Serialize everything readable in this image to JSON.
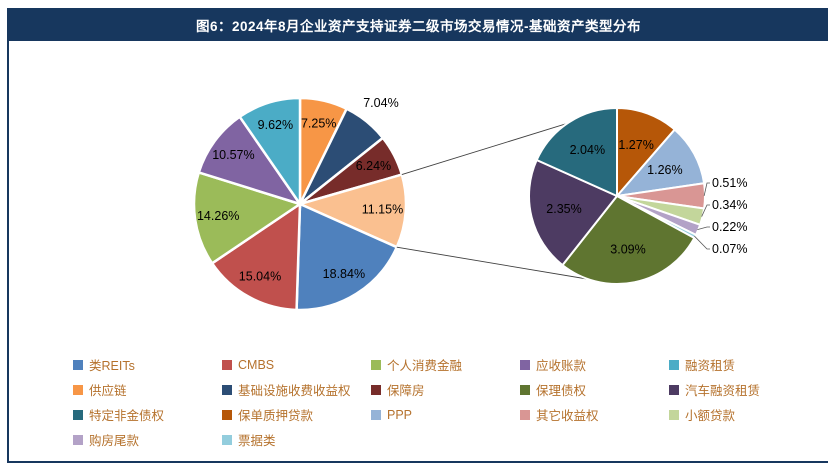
{
  "title": "图6：2024年8月企业资产支持证券二级市场交易情况-基础资产类型分布",
  "colors": {
    "banner_background": "#17375E",
    "banner_text": "#FFFFFF",
    "frame_border": "#17375E",
    "legend_text": "#B5722D",
    "slice_label_text": "#000000",
    "slice_stroke": "#FFFFFF",
    "leader_line": "#595959",
    "connector_line": "#404040"
  },
  "chart_data": {
    "type": "pie",
    "variant": "pie-of-pie",
    "title": "图6：2024年8月企业资产支持证券二级市场交易情况-基础资产类型分布",
    "unit": "%",
    "legend_position": "bottom",
    "main_pie": {
      "order": "clockwise-from-top",
      "other_slice_index": 3,
      "slices": [
        {
          "name": "供应链",
          "value": 7.25,
          "color": "#F79646",
          "label_placement": "inside"
        },
        {
          "name": "基础设施收费收益权",
          "value": 7.04,
          "color": "#2C4D75",
          "label_placement": "outside-top"
        },
        {
          "name": "保障房",
          "value": 6.24,
          "color": "#772C2A",
          "label_placement": "inside"
        },
        {
          "name": "other",
          "value": 11.15,
          "color": "#FAC090",
          "label_placement": "inside"
        },
        {
          "name": "类REITs",
          "value": 18.84,
          "color": "#4F81BD",
          "label_placement": "inside"
        },
        {
          "name": "CMBS",
          "value": 15.04,
          "color": "#C0504D",
          "label_placement": "inside"
        },
        {
          "name": "个人消费金融",
          "value": 14.26,
          "color": "#9BBB59",
          "label_placement": "inside"
        },
        {
          "name": "应收账款",
          "value": 10.57,
          "color": "#8064A2",
          "label_placement": "inside"
        },
        {
          "name": "融资租赁",
          "value": 9.62,
          "color": "#4BACC6",
          "label_placement": "inside"
        }
      ]
    },
    "secondary_pie": {
      "order": "clockwise-from-top",
      "slices": [
        {
          "name": "保单质押贷款",
          "value": 1.27,
          "color": "#B65708",
          "label_placement": "inside"
        },
        {
          "name": "PPP",
          "value": 1.26,
          "color": "#95B3D7",
          "label_placement": "inside"
        },
        {
          "name": "其它收益权",
          "value": 0.51,
          "color": "#D99694",
          "label_placement": "outside-right"
        },
        {
          "name": "小额贷款",
          "value": 0.34,
          "color": "#C3D69B",
          "label_placement": "outside-right"
        },
        {
          "name": "购房尾款",
          "value": 0.22,
          "color": "#B3A2C7",
          "label_placement": "outside-right"
        },
        {
          "name": "票据类",
          "value": 0.07,
          "color": "#93CDDD",
          "label_placement": "outside-right"
        },
        {
          "name": "保理债权",
          "value": 3.09,
          "color": "#5F7530",
          "label_placement": "inside"
        },
        {
          "name": "汽车融资租赁",
          "value": 2.35,
          "color": "#4D3B62",
          "label_placement": "inside"
        },
        {
          "name": "特定非金债权",
          "value": 2.04,
          "color": "#276A7D",
          "label_placement": "inside"
        }
      ]
    }
  },
  "legend": {
    "items": [
      {
        "label": "类REITs",
        "color": "#4F81BD"
      },
      {
        "label": "CMBS",
        "color": "#C0504D"
      },
      {
        "label": "个人消费金融",
        "color": "#9BBB59"
      },
      {
        "label": "应收账款",
        "color": "#8064A2"
      },
      {
        "label": "融资租赁",
        "color": "#4BACC6"
      },
      {
        "label": "供应链",
        "color": "#F79646"
      },
      {
        "label": "基础设施收费收益权",
        "color": "#2C4D75"
      },
      {
        "label": "保障房",
        "color": "#772C2A"
      },
      {
        "label": "保理债权",
        "color": "#5F7530"
      },
      {
        "label": "汽车融资租赁",
        "color": "#4D3B62"
      },
      {
        "label": "特定非金债权",
        "color": "#276A7D"
      },
      {
        "label": "保单质押贷款",
        "color": "#B65708"
      },
      {
        "label": "PPP",
        "color": "#95B3D7"
      },
      {
        "label": "其它收益权",
        "color": "#D99694"
      },
      {
        "label": "小额贷款",
        "color": "#C3D69B"
      },
      {
        "label": "购房尾款",
        "color": "#B3A2C7"
      },
      {
        "label": "票据类",
        "color": "#93CDDD"
      }
    ]
  }
}
